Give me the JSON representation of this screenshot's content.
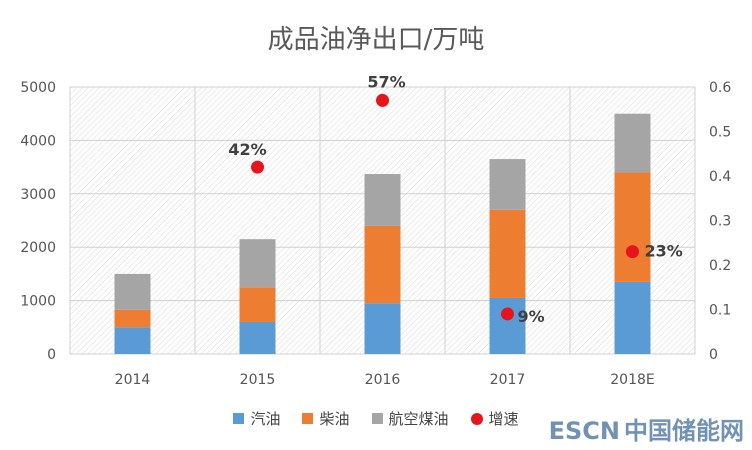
{
  "chart_data": {
    "type": "bar",
    "title": "成品油净出口/万吨",
    "categories": [
      "2014",
      "2015",
      "2016",
      "2017",
      "2018E"
    ],
    "stacked": true,
    "ylim": [
      0,
      5000
    ],
    "yticks": [
      0,
      1000,
      2000,
      3000,
      4000,
      5000
    ],
    "y2lim": [
      0,
      0.6
    ],
    "y2ticks": [
      "0",
      "0.1",
      "0.2",
      "0.3",
      "0.4",
      "0.5",
      "0.6"
    ],
    "series": [
      {
        "name": "汽油",
        "color": "#5b9bd5",
        "values": [
          500,
          600,
          950,
          1050,
          1350
        ]
      },
      {
        "name": "柴油",
        "color": "#ed7d31",
        "values": [
          330,
          650,
          1450,
          1650,
          2050
        ]
      },
      {
        "name": "航空煤油",
        "color": "#a5a5a5",
        "values": [
          670,
          900,
          970,
          950,
          1100
        ]
      }
    ],
    "line_series": {
      "name": "增速",
      "color": "#e8141c",
      "axis": "secondary",
      "values": [
        null,
        0.42,
        0.57,
        0.09,
        0.23
      ],
      "labels": [
        "",
        "42%",
        "57%",
        "9%",
        "23%"
      ]
    },
    "legend_position": "bottom"
  },
  "legend": {
    "items": [
      {
        "label": "汽油",
        "color": "#5b9bd5",
        "type": "square"
      },
      {
        "label": "柴油",
        "color": "#ed7d31",
        "type": "square"
      },
      {
        "label": "航空煤油",
        "color": "#a5a5a5",
        "type": "square"
      },
      {
        "label": "增速",
        "color": "#e8141c",
        "type": "dot"
      }
    ]
  },
  "watermark": {
    "brand": "ESCN",
    "text": "中国储能网"
  }
}
